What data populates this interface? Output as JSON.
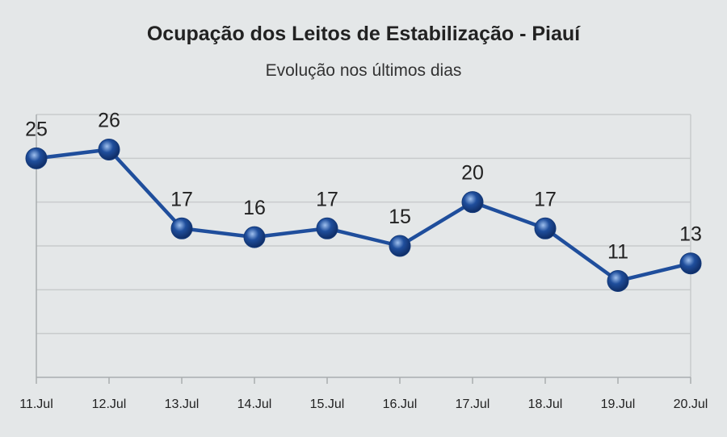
{
  "chart_data": {
    "type": "line",
    "title": "Ocupação dos Leitos de Estabilização - Piauí",
    "subtitle": "Evolução nos últimos dias",
    "categories": [
      "11.Jul",
      "12.Jul",
      "13.Jul",
      "14.Jul",
      "15.Jul",
      "16.Jul",
      "17.Jul",
      "18.Jul",
      "19.Jul",
      "20.Jul"
    ],
    "series": [
      {
        "values": [
          25,
          26,
          17,
          16,
          17,
          15,
          20,
          17,
          11,
          13
        ]
      }
    ],
    "ylim": [
      0,
      30
    ],
    "grid": true,
    "legend": "none",
    "colors": {
      "line": "#1f4e9c",
      "marker": "#1f4e9c",
      "grid": "#c8cbcc",
      "background": "#e4e7e8"
    }
  }
}
